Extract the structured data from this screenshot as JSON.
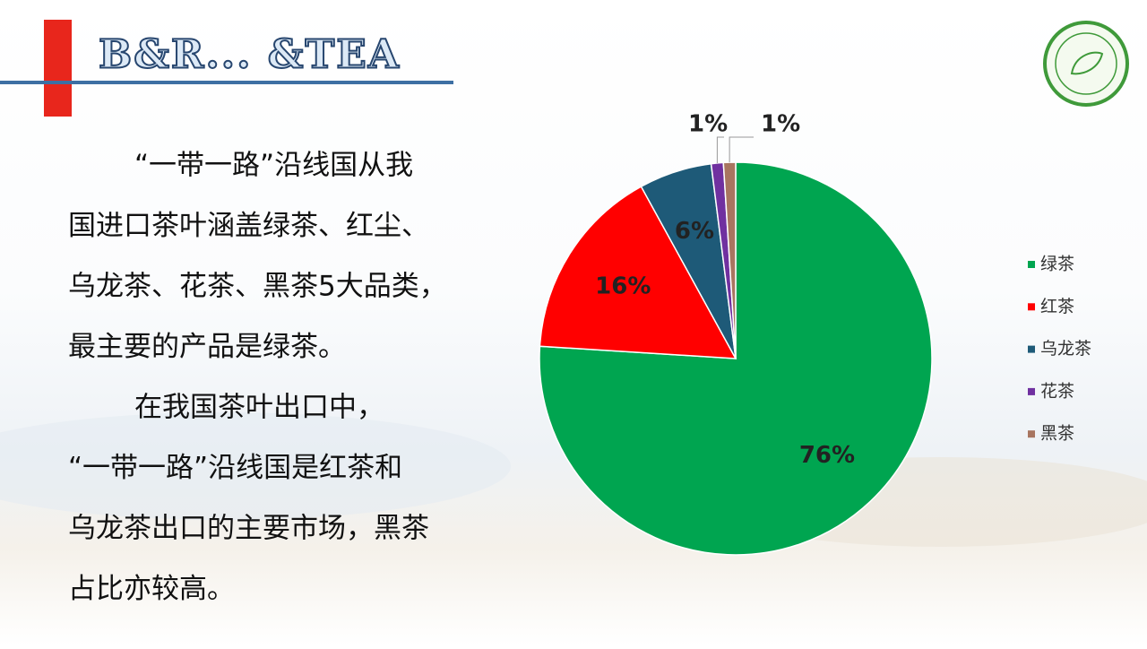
{
  "header": {
    "title": "B&R... &TEA"
  },
  "body": {
    "paragraphs": [
      [
        "“一带一路”沿线国从我",
        "国进口茶叶涵盖绿茶、红尘、",
        "乌龙茶、花茶、黑茶5大品类，",
        "最主要的产品是绿茶。"
      ],
      [
        "在我国茶叶出口中，",
        "“一带一路”沿线国是红茶和",
        "乌龙茶出口的主要市场，黑茶",
        "占比亦较高。"
      ]
    ]
  },
  "chart_data": {
    "type": "pie",
    "categories": [
      "绿茶",
      "红茶",
      "乌龙茶",
      "花茶",
      "黑茶"
    ],
    "values": [
      76,
      16,
      6,
      1,
      1
    ],
    "value_labels": [
      "76%",
      "16%",
      "6%",
      "1%",
      "1%"
    ],
    "colors": [
      "#00a550",
      "#ff0000",
      "#1e5a78",
      "#7030a0",
      "#a87560"
    ],
    "legend": "right"
  }
}
